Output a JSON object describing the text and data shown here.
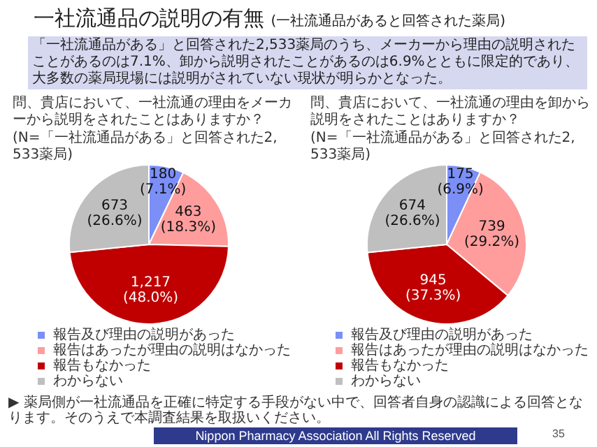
{
  "chart_data": [
    {
      "type": "other",
      "title": "一社流通品の説明の有無",
      "subtitle": "(一社流通品があると回答された薬局)",
      "annotations": [
        "「一社流通品がある」と回答された2,533薬局のうち、メーカーから理由の説明されたことがあるのは7.1%、卸から説明されたことがあるのは6.9%とともに限定的であり、大多数の薬局現場には説明がされていない現状が明らかとなった。",
        "▶ 薬局側が一社流通品を正確に特定する手段がない中で、回答者自身の認識による回答となります。そのうえで本調査結果を取扱いください。",
        "Nippon Pharmacy Association All Rights Reserved",
        "35"
      ]
    },
    {
      "type": "pie",
      "title": "問、貴店において、一社流通の理由をメーカーから説明をされたことはありますか？",
      "subtitle": "(N=「一社流通品がある」と回答された2,533薬局)",
      "categories": [
        "報告及び理由の説明があった",
        "報告はあったが理由の説明はなかった",
        "報告もなかった",
        "わからない"
      ],
      "values": [
        180,
        463,
        1217,
        673
      ],
      "value_labels": [
        "180\n(7.1%)",
        "463\n(18.3%)",
        "1,217\n(48.0%)",
        "673\n(26.6%)"
      ],
      "colors": [
        "#7b8ff7",
        "#ff9d9d",
        "#c00000",
        "#bfbfbf"
      ],
      "legend": "bottom"
    },
    {
      "type": "pie",
      "title": "問、貴店において、一社流通の理由を卸から説明をされたことはありますか？",
      "subtitle": "(N=「一社流通品がある」と回答された2,533薬局)",
      "categories": [
        "報告及び理由の説明があった",
        "報告はあったが理由の説明はなかった",
        "報告もなかった",
        "わからない"
      ],
      "values": [
        175,
        739,
        945,
        674
      ],
      "value_labels": [
        "175\n(6.9%)",
        "739\n(29.2%)",
        "945\n(37.3%)",
        "674\n(26.6%)"
      ],
      "colors": [
        "#7b8ff7",
        "#ff9d9d",
        "#c00000",
        "#bfbfbf"
      ],
      "legend": "bottom"
    }
  ]
}
